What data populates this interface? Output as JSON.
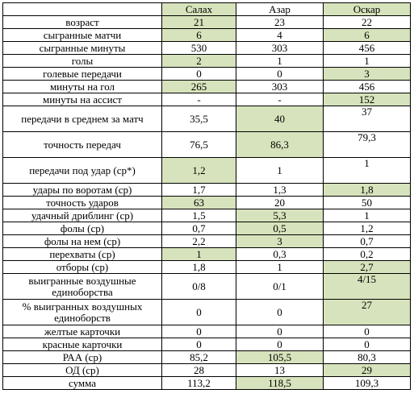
{
  "header": {
    "label": "",
    "cols": [
      "Салах",
      "Азар",
      "Оскар"
    ]
  },
  "rows": [
    {
      "label": "возраст",
      "vals": [
        "21",
        "23",
        "22"
      ]
    },
    {
      "label": "сыгранные матчи",
      "vals": [
        "6",
        "4",
        "6"
      ]
    },
    {
      "label": "сыгранные минуты",
      "vals": [
        "530",
        "303",
        "456"
      ]
    },
    {
      "label": "голы",
      "vals": [
        "2",
        "1",
        "1"
      ]
    },
    {
      "label": "голевые передачи",
      "vals": [
        "0",
        "0",
        "3"
      ]
    },
    {
      "label": "минуты на гол",
      "vals": [
        "265",
        "303",
        "456"
      ]
    },
    {
      "label": "минуты на ассист",
      "vals": [
        "-",
        "-",
        "152"
      ]
    },
    {
      "label": "передачи в среднем за матч",
      "vals": [
        "35,5",
        "40",
        "37"
      ]
    },
    {
      "label": "точность передач",
      "vals": [
        "76,5",
        "86,3",
        "79,3"
      ]
    },
    {
      "label": "передачи под удар (ср*)",
      "vals": [
        "1,2",
        "1",
        "1"
      ]
    },
    {
      "label": "удары по воротам (ср)",
      "vals": [
        "1,7",
        "1,3",
        "1,8"
      ]
    },
    {
      "label": "точность ударов",
      "vals": [
        "63",
        "20",
        "50"
      ]
    },
    {
      "label": "удачный дриблинг (ср)",
      "vals": [
        "1,5",
        "5,3",
        "1"
      ]
    },
    {
      "label": "фолы (ср)",
      "vals": [
        "0,7",
        "0,5",
        "1,2"
      ]
    },
    {
      "label": "фолы на нем (ср)",
      "vals": [
        "2,2",
        "3",
        "0,7"
      ]
    },
    {
      "label": "перехваты (ср)",
      "vals": [
        "1",
        "0,3",
        "0,2"
      ]
    },
    {
      "label": "отборы (ср)",
      "vals": [
        "1,8",
        "1",
        "2,7"
      ]
    },
    {
      "label": "выигранные воздушные единоборства",
      "vals": [
        "0/8",
        "0/1",
        "4/15"
      ]
    },
    {
      "label": "% выигранных воздушных единоборств",
      "vals": [
        "0",
        "0",
        "27"
      ]
    },
    {
      "label": "желтые карточки",
      "vals": [
        "0",
        "0",
        "0"
      ]
    },
    {
      "label": "красные карточки",
      "vals": [
        "0",
        "0",
        "0"
      ]
    },
    {
      "label": "РАА (ср)",
      "vals": [
        "85,2",
        "105,5",
        "80,3"
      ]
    },
    {
      "label": "ОД (ср)",
      "vals": [
        "28",
        "13",
        "29"
      ]
    },
    {
      "label": "сумма",
      "vals": [
        "113,2",
        "118,5",
        "109,3"
      ]
    }
  ],
  "highlight_color": "#d6e3bc"
}
